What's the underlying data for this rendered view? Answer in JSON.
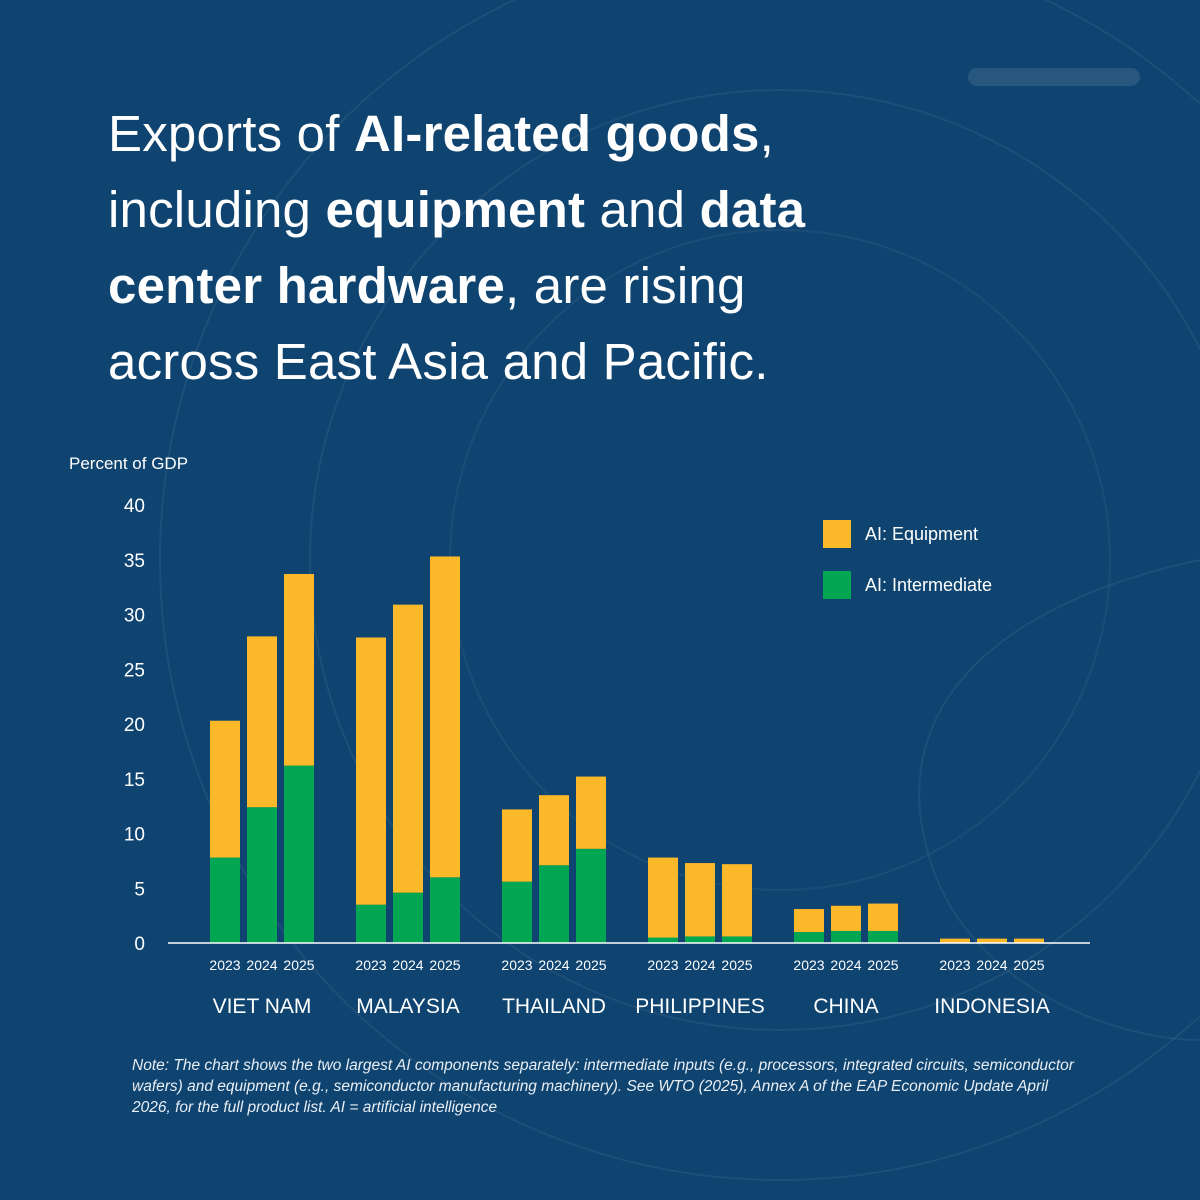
{
  "title": {
    "segments": [
      {
        "text": "Exports of ",
        "bold": false
      },
      {
        "text": "AI-related goods",
        "bold": true
      },
      {
        "text": ", including ",
        "bold": false
      },
      {
        "text": "equipment",
        "bold": true
      },
      {
        "text": " and ",
        "bold": false
      },
      {
        "text": "data center hardware",
        "bold": true
      },
      {
        "text": ", are rising across East Asia and Pacific.",
        "bold": false
      }
    ]
  },
  "note": "Note: The chart shows the two largest AI components separately: intermediate inputs (e.g., processors, integrated circuits, semiconductor wafers) and equipment (e.g., semiconductor manufacturing machinery). See WTO (2025), Annex A of the EAP Economic Update April 2026, for the full product list. AI = artificial intelligence",
  "colors": {
    "background": "#0f4470",
    "equipment": "#fbb829",
    "intermediate": "#00a651",
    "text": "#ffffff",
    "axis": "#ffffff"
  },
  "chart_data": {
    "type": "bar",
    "stacked": true,
    "ylabel": "Percent of GDP",
    "ylim": [
      0,
      40
    ],
    "yticks": [
      0,
      5,
      10,
      15,
      20,
      25,
      30,
      35,
      40
    ],
    "grid": false,
    "legend_position": "top-right",
    "groups": [
      "VIET NAM",
      "MALAYSIA",
      "THAILAND",
      "PHILIPPINES",
      "CHINA",
      "INDONESIA"
    ],
    "years": [
      "2023",
      "2024",
      "2025"
    ],
    "series": [
      {
        "name": "AI: Intermediate",
        "color": "#00a651",
        "values": [
          [
            7.8,
            12.4,
            16.2
          ],
          [
            3.5,
            4.6,
            6.0
          ],
          [
            5.6,
            7.1,
            8.6
          ],
          [
            0.5,
            0.6,
            0.6
          ],
          [
            1.0,
            1.1,
            1.1
          ],
          [
            0.0,
            0.0,
            0.0
          ]
        ]
      },
      {
        "name": "AI: Equipment",
        "color": "#fbb829",
        "values": [
          [
            12.5,
            15.6,
            17.5
          ],
          [
            24.4,
            26.3,
            29.3
          ],
          [
            6.6,
            6.4,
            6.6
          ],
          [
            7.3,
            6.7,
            6.6
          ],
          [
            2.1,
            2.3,
            2.5
          ],
          [
            0.4,
            0.4,
            0.4
          ]
        ]
      }
    ],
    "legend": [
      {
        "label": "AI: Equipment",
        "color": "#fbb829"
      },
      {
        "label": "AI: Intermediate",
        "color": "#00a651"
      }
    ]
  }
}
